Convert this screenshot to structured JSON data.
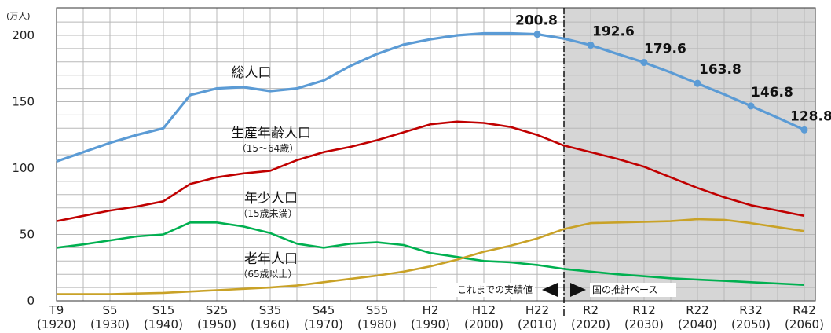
{
  "chart_data": {
    "type": "line",
    "y_unit": "(万人)",
    "ylim": [
      0,
      200
    ],
    "y_ticks": [
      0,
      50,
      100,
      150,
      200
    ],
    "x_ticks": [
      {
        "year": 1920,
        "era": "T9",
        "ad": "(1920)"
      },
      {
        "year": 1930,
        "era": "S5",
        "ad": "(1930)"
      },
      {
        "year": 1940,
        "era": "S15",
        "ad": "(1940)"
      },
      {
        "year": 1950,
        "era": "S25",
        "ad": "(1950)"
      },
      {
        "year": 1960,
        "era": "S35",
        "ad": "(1960)"
      },
      {
        "year": 1970,
        "era": "S45",
        "ad": "(1970)"
      },
      {
        "year": 1980,
        "era": "S55",
        "ad": "(1980)"
      },
      {
        "year": 1990,
        "era": "H2",
        "ad": "(1990)"
      },
      {
        "year": 2000,
        "era": "H12",
        "ad": "(2000)"
      },
      {
        "year": 2010,
        "era": "H22",
        "ad": "(2010)"
      },
      {
        "year": 2020,
        "era": "R2",
        "ad": "(2020)"
      },
      {
        "year": 2030,
        "era": "R12",
        "ad": "(2030)"
      },
      {
        "year": 2040,
        "era": "R22",
        "ad": "(2040)"
      },
      {
        "year": 2050,
        "era": "R32",
        "ad": "(2050)"
      },
      {
        "year": 2060,
        "era": "R42",
        "ad": "(2060)"
      }
    ],
    "split_year": 2015,
    "grid": true,
    "series": [
      {
        "name": "総人口",
        "sub": "",
        "color": "#5b9bd5",
        "x": [
          1920,
          1925,
          1930,
          1935,
          1940,
          1945,
          1950,
          1955,
          1960,
          1965,
          1970,
          1975,
          1980,
          1985,
          1990,
          1995,
          2000,
          2005,
          2010,
          2015,
          2020,
          2025,
          2030,
          2035,
          2040,
          2045,
          2050,
          2055,
          2060
        ],
        "values": [
          105,
          112,
          119,
          125,
          130,
          155,
          160,
          161,
          158,
          160,
          166,
          177,
          186,
          193,
          197,
          200,
          201.5,
          201.5,
          200.8,
          197.5,
          192.6,
          186,
          179.6,
          172,
          163.8,
          155.5,
          146.8,
          138,
          128.8
        ]
      },
      {
        "name": "生産年齢人口",
        "sub": "（15～64歳）",
        "color": "#c00000",
        "x": [
          1920,
          1925,
          1930,
          1935,
          1940,
          1945,
          1950,
          1955,
          1960,
          1965,
          1970,
          1975,
          1980,
          1985,
          1990,
          1995,
          2000,
          2005,
          2010,
          2015,
          2020,
          2025,
          2030,
          2035,
          2040,
          2045,
          2050,
          2055,
          2060
        ],
        "values": [
          60,
          64,
          68,
          71,
          75,
          88,
          93,
          96,
          98,
          106,
          112,
          116,
          121,
          127,
          133,
          135,
          134,
          131,
          125,
          117,
          112,
          107,
          101,
          93,
          85,
          78,
          72,
          68,
          64
        ]
      },
      {
        "name": "年少人口",
        "sub": "（15歳未満）",
        "color": "#00b050",
        "x": [
          1920,
          1925,
          1930,
          1935,
          1940,
          1945,
          1950,
          1955,
          1960,
          1965,
          1970,
          1975,
          1980,
          1985,
          1990,
          1995,
          2000,
          2005,
          2010,
          2015,
          2020,
          2025,
          2030,
          2035,
          2040,
          2045,
          2050,
          2055,
          2060
        ],
        "values": [
          40,
          42.5,
          45.5,
          48.5,
          50,
          59,
          59,
          56,
          51,
          43,
          40,
          43,
          44,
          42,
          36,
          33,
          30,
          29,
          27,
          24,
          22,
          20,
          18.5,
          17,
          16,
          15,
          14,
          13,
          12
        ]
      },
      {
        "name": "老年人口",
        "sub": "（65歳以上）",
        "color": "#c9a227",
        "x": [
          1920,
          1925,
          1930,
          1935,
          1940,
          1945,
          1950,
          1955,
          1960,
          1965,
          1970,
          1975,
          1980,
          1985,
          1990,
          1995,
          2000,
          2005,
          2010,
          2015,
          2020,
          2025,
          2030,
          2035,
          2040,
          2045,
          2050,
          2055,
          2060
        ],
        "values": [
          5,
          5,
          5,
          5.5,
          6,
          7,
          8,
          9,
          10,
          11.5,
          14,
          16.5,
          19,
          22,
          26,
          31,
          37,
          41.5,
          47,
          54,
          58.5,
          59,
          59.5,
          60,
          61.5,
          61,
          58.5,
          55.5,
          52.5
        ]
      }
    ],
    "total_markers": [
      {
        "year": 2010,
        "value": 200.8,
        "label": "200.8"
      },
      {
        "year": 2020,
        "value": 192.6,
        "label": "192.6"
      },
      {
        "year": 2030,
        "value": 179.6,
        "label": "179.6"
      },
      {
        "year": 2040,
        "value": 163.8,
        "label": "163.8"
      },
      {
        "year": 2050,
        "value": 146.8,
        "label": "146.8"
      },
      {
        "year": 2060,
        "value": 128.8,
        "label": "128.8"
      }
    ],
    "notes": {
      "actual": "これまでの実績値",
      "projection": "国の推計ベース"
    },
    "colors": {
      "projection_bg": "#d6d6d6",
      "grid": "#b8b8b8",
      "axis": "#333333"
    }
  }
}
